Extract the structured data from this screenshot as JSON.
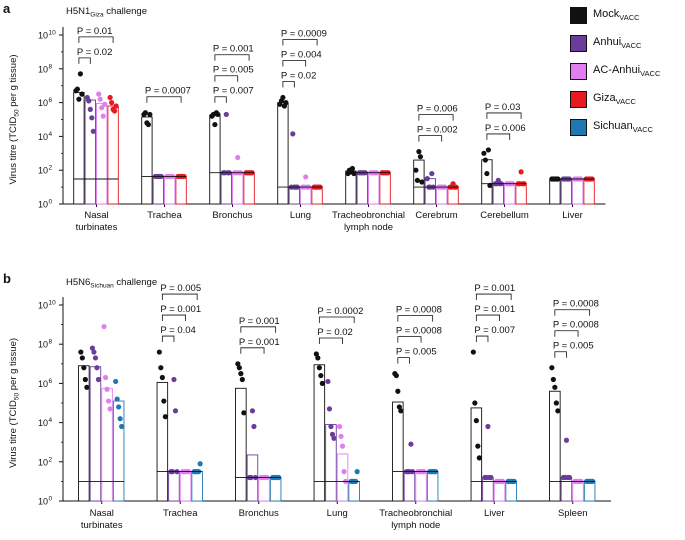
{
  "chart_data": [
    {
      "type": "bar",
      "panel_label": "a",
      "title_main": "H5N1",
      "title_sub": "Giza",
      "title_rest": " challenge",
      "ylabel_main": "Virus titre (TCID",
      "ylabel_sub": "50",
      "ylabel_rest": " per g tissue)",
      "yscale": "log10",
      "ylim": [
        0,
        10
      ],
      "yticks": [
        0,
        2,
        4,
        6,
        8,
        10
      ],
      "ytick_labels": [
        "10",
        "10",
        "10",
        "10",
        "10",
        "10"
      ],
      "ytick_exps": [
        "0",
        "2",
        "4",
        "6",
        "8",
        "10"
      ],
      "categories": [
        [
          "Nasal",
          "turbinates"
        ],
        [
          "Trachea"
        ],
        [
          "Bronchus"
        ],
        [
          "Lung"
        ],
        [
          "Tracheobronchial",
          "lymph node"
        ],
        [
          "Cerebrum"
        ],
        [
          "Cerebellum"
        ],
        [
          "Liver"
        ]
      ],
      "detection_limit_log": [
        1.48,
        1.63,
        1.85,
        1.0,
        1.85,
        1.0,
        1.2,
        1.48
      ],
      "series": [
        {
          "name": "Mock",
          "color": "#111111",
          "mean_log": [
            6.6,
            5.15,
            5.25,
            6.0,
            1.95,
            2.6,
            2.62,
            1.48
          ],
          "points_log": [
            [
              6.7,
              6.8,
              6.2,
              7.7,
              6.5
            ],
            [
              5.3,
              5.4,
              4.8,
              4.7,
              5.3
            ],
            [
              5.2,
              5.3,
              4.7,
              5.4,
              5.3
            ],
            [
              5.9,
              6.1,
              6.3,
              5.8,
              6.0
            ],
            [
              1.8,
              2.0,
              1.9,
              2.1,
              1.8
            ],
            [
              2.0,
              1.4,
              3.1,
              2.8,
              1.3
            ],
            [
              3.0,
              2.6,
              1.8,
              3.2,
              1.1
            ],
            [
              1.48,
              1.48,
              1.48,
              1.48,
              1.48
            ]
          ]
        },
        {
          "name": "Anhui",
          "color": "#6a3d9a",
          "mean_log": [
            6.15,
            1.63,
            1.85,
            1.0,
            1.85,
            1.5,
            1.2,
            1.48
          ],
          "points_log": [
            [
              6.3,
              6.1,
              5.6,
              5.1,
              4.3
            ],
            [
              1.63,
              1.63,
              1.63,
              1.63,
              1.63
            ],
            [
              1.85,
              1.85,
              5.3,
              1.85,
              1.85
            ],
            [
              1.0,
              4.15,
              1.0,
              1.0,
              1.0
            ],
            [
              1.85,
              1.85,
              1.85,
              1.85,
              1.85
            ],
            [
              1.5,
              1.0,
              1.0,
              1.8,
              1.0
            ],
            [
              1.2,
              1.2,
              1.4,
              1.2,
              1.2
            ],
            [
              1.48,
              1.48,
              1.48,
              1.48,
              1.48
            ]
          ]
        },
        {
          "name": "AC-Anhui",
          "color": "#e07ef0",
          "mean_log": [
            5.95,
            1.63,
            1.9,
            1.0,
            1.85,
            1.0,
            1.2,
            1.48
          ],
          "points_log": [
            [
              6.5,
              6.2,
              5.7,
              5.2,
              5.9
            ],
            [
              1.63,
              1.63,
              1.63,
              1.63,
              1.63
            ],
            [
              1.85,
              1.85,
              2.75,
              1.85,
              1.85
            ],
            [
              1.0,
              1.0,
              1.6,
              1.0,
              1.0
            ],
            [
              1.85,
              1.85,
              1.85,
              1.85,
              1.85
            ],
            [
              1.0,
              1.0,
              1.0,
              1.0,
              1.0
            ],
            [
              1.2,
              1.2,
              1.2,
              1.2,
              1.2
            ],
            [
              1.48,
              1.48,
              1.48,
              1.48,
              1.48
            ]
          ]
        },
        {
          "name": "Giza",
          "color": "#e8191f",
          "mean_log": [
            5.8,
            1.63,
            1.85,
            1.0,
            1.85,
            1.0,
            1.2,
            1.48
          ],
          "points_log": [
            [
              6.3,
              6.0,
              5.6,
              5.5,
              5.8
            ],
            [
              1.63,
              1.63,
              1.63,
              1.63,
              1.63
            ],
            [
              1.85,
              1.85,
              1.85,
              1.85,
              1.85
            ],
            [
              1.0,
              1.0,
              1.0,
              1.0,
              1.0
            ],
            [
              1.85,
              1.85,
              1.85,
              1.85,
              1.85
            ],
            [
              1.0,
              1.0,
              1.2,
              1.0,
              1.0
            ],
            [
              1.2,
              1.2,
              1.9,
              1.2,
              1.2
            ],
            [
              1.48,
              1.48,
              1.48,
              1.48,
              1.48
            ]
          ]
        },
        {
          "name": "Sichuan",
          "color": "#1f78b4",
          "mean_log": [],
          "points_log": []
        }
      ],
      "comparisons": [
        {
          "group": 0,
          "from": 0,
          "to": 3,
          "p": "P = 0.01"
        },
        {
          "group": 0,
          "from": 0,
          "to": 1,
          "p": "P = 0.02"
        },
        {
          "group": 1,
          "from": 0,
          "to": 3,
          "p": "P = 0.0007"
        },
        {
          "group": 2,
          "from": 0,
          "to": 3,
          "p": "P = 0.001"
        },
        {
          "group": 2,
          "from": 0,
          "to": 2,
          "p": "P = 0.005"
        },
        {
          "group": 2,
          "from": 0,
          "to": 1,
          "p": "P = 0.007"
        },
        {
          "group": 3,
          "from": 0,
          "to": 3,
          "p": "P = 0.0009"
        },
        {
          "group": 3,
          "from": 0,
          "to": 2,
          "p": "P = 0.004"
        },
        {
          "group": 3,
          "from": 0,
          "to": 1,
          "p": "P = 0.02"
        },
        {
          "group": 5,
          "from": 0,
          "to": 3,
          "p": "P = 0.006"
        },
        {
          "group": 5,
          "from": 0,
          "to": 2,
          "p": "P = 0.002"
        },
        {
          "group": 6,
          "from": 0,
          "to": 3,
          "p": "P = 0.03"
        },
        {
          "group": 6,
          "from": 0,
          "to": 2,
          "p": "P = 0.006"
        }
      ]
    },
    {
      "type": "bar",
      "panel_label": "b",
      "title_main": "H5N6",
      "title_sub": "Sichuan",
      "title_rest": " challenge",
      "ylabel_main": "Virus titre (TCID",
      "ylabel_sub": "50",
      "ylabel_rest": " per g tissue)",
      "yscale": "log10",
      "ylim": [
        0,
        10
      ],
      "yticks": [
        0,
        2,
        4,
        6,
        8,
        10
      ],
      "ytick_labels": [
        "10",
        "10",
        "10",
        "10",
        "10",
        "10"
      ],
      "ytick_exps": [
        "0",
        "2",
        "4",
        "6",
        "8",
        "10"
      ],
      "categories": [
        [
          "Nasal",
          "turbinates"
        ],
        [
          "Trachea"
        ],
        [
          "Bronchus"
        ],
        [
          "Lung"
        ],
        [
          "Tracheobronchial",
          "lymph node"
        ],
        [
          "Liver"
        ],
        [
          "Spleen"
        ]
      ],
      "detection_limit_log": [
        1.0,
        1.5,
        1.2,
        1.0,
        1.5,
        1.0,
        1.0
      ],
      "series": [
        {
          "name": "Mock",
          "color": "#111111",
          "mean_log": [
            6.9,
            6.05,
            5.75,
            6.95,
            5.05,
            4.75,
            5.6
          ],
          "points_log": [
            [
              7.6,
              7.3,
              6.8,
              6.2,
              5.8
            ],
            [
              7.6,
              6.8,
              6.3,
              5.1,
              4.3
            ],
            [
              7.0,
              6.8,
              6.5,
              6.2,
              4.5
            ],
            [
              7.5,
              7.3,
              6.8,
              6.4,
              6.0
            ],
            [
              6.5,
              6.4,
              5.6,
              4.8,
              4.6
            ],
            [
              7.6,
              5.0,
              4.1,
              2.8,
              2.2
            ],
            [
              6.8,
              6.2,
              5.8,
              5.0,
              4.6
            ]
          ]
        },
        {
          "name": "Anhui",
          "color": "#6a3d9a",
          "mean_log": [
            6.85,
            1.5,
            2.35,
            3.9,
            1.5,
            1.2,
            1.2
          ],
          "points_log": [
            [
              7.8,
              7.6,
              7.3,
              6.8,
              6.2
            ],
            [
              1.5,
              1.5,
              6.2,
              4.6,
              1.5
            ],
            [
              1.2,
              1.2,
              4.6,
              3.8,
              1.2
            ],
            [
              6.1,
              4.7,
              3.8,
              3.4,
              3.2
            ],
            [
              1.5,
              1.5,
              1.5,
              2.9,
              1.5
            ],
            [
              1.2,
              1.2,
              3.8,
              1.2,
              1.2
            ],
            [
              1.2,
              1.2,
              3.1,
              1.2,
              1.2
            ]
          ]
        },
        {
          "name": "AC-Anhui",
          "color": "#e07ef0",
          "mean_log": [
            5.75,
            1.5,
            1.2,
            2.4,
            1.5,
            1.0,
            1.0
          ],
          "points_log": [
            [
              8.9,
              6.3,
              5.7,
              5.1,
              4.7
            ],
            [
              1.5,
              1.5,
              1.5,
              1.5,
              1.5
            ],
            [
              1.2,
              1.2,
              1.2,
              1.2,
              1.2
            ],
            [
              3.8,
              3.3,
              2.8,
              1.5,
              1.0
            ],
            [
              1.5,
              1.5,
              1.5,
              1.5,
              1.5
            ],
            [
              1.0,
              1.0,
              1.0,
              1.0,
              1.0
            ],
            [
              1.0,
              1.0,
              1.0,
              1.0,
              1.0
            ]
          ]
        },
        {
          "name": "Giza",
          "color": "#e8191f",
          "mean_log": [],
          "points_log": []
        },
        {
          "name": "Sichuan",
          "color": "#1f78b4",
          "mean_log": [
            5.1,
            1.5,
            1.2,
            1.0,
            1.5,
            1.0,
            1.0
          ],
          "points_log": [
            [
              6.1,
              5.2,
              4.8,
              4.2,
              3.8
            ],
            [
              1.5,
              1.5,
              1.5,
              1.5,
              1.9
            ],
            [
              1.2,
              1.2,
              1.2,
              1.2,
              1.2
            ],
            [
              1.0,
              1.0,
              1.0,
              1.0,
              1.5
            ],
            [
              1.5,
              1.5,
              1.5,
              1.5,
              1.5
            ],
            [
              1.0,
              1.0,
              1.0,
              1.0,
              1.0
            ],
            [
              1.0,
              1.0,
              1.0,
              1.0,
              1.0
            ]
          ]
        }
      ],
      "series_order": [
        0,
        1,
        2,
        4
      ],
      "comparisons": [
        {
          "group": 1,
          "from": 0,
          "to": 3,
          "p": "P = 0.005"
        },
        {
          "group": 1,
          "from": 0,
          "to": 2,
          "p": "P = 0.001"
        },
        {
          "group": 1,
          "from": 0,
          "to": 1,
          "p": "P = 0.04"
        },
        {
          "group": 2,
          "from": 0,
          "to": 3,
          "p": "P = 0.001"
        },
        {
          "group": 2,
          "from": 0,
          "to": 2,
          "p": "P = 0.001"
        },
        {
          "group": 3,
          "from": 0,
          "to": 3,
          "p": "P = 0.0002"
        },
        {
          "group": 3,
          "from": 0,
          "to": 2,
          "p": "P = 0.02"
        },
        {
          "group": 4,
          "from": 0,
          "to": 3,
          "p": "P = 0.0008"
        },
        {
          "group": 4,
          "from": 0,
          "to": 2,
          "p": "P = 0.0008"
        },
        {
          "group": 4,
          "from": 0,
          "to": 1,
          "p": "P = 0.005"
        },
        {
          "group": 5,
          "from": 0,
          "to": 3,
          "p": "P = 0.001"
        },
        {
          "group": 5,
          "from": 0,
          "to": 2,
          "p": "P = 0.001"
        },
        {
          "group": 5,
          "from": 0,
          "to": 1,
          "p": "P = 0.007"
        },
        {
          "group": 6,
          "from": 0,
          "to": 3,
          "p": "P = 0.0008"
        },
        {
          "group": 6,
          "from": 0,
          "to": 2,
          "p": "P = 0.0008"
        },
        {
          "group": 6,
          "from": 0,
          "to": 1,
          "p": "P = 0.005"
        }
      ]
    }
  ],
  "legend": [
    {
      "name": "Mock",
      "sub": "VACC",
      "color": "#111111"
    },
    {
      "name": "Anhui",
      "sub": "VACC",
      "color": "#6a3d9a"
    },
    {
      "name": "AC-Anhui",
      "sub": "VACC",
      "color": "#e07ef0"
    },
    {
      "name": "Giza",
      "sub": "VACC",
      "color": "#e8191f"
    },
    {
      "name": "Sichuan",
      "sub": "VACC",
      "color": "#1f78b4"
    }
  ]
}
